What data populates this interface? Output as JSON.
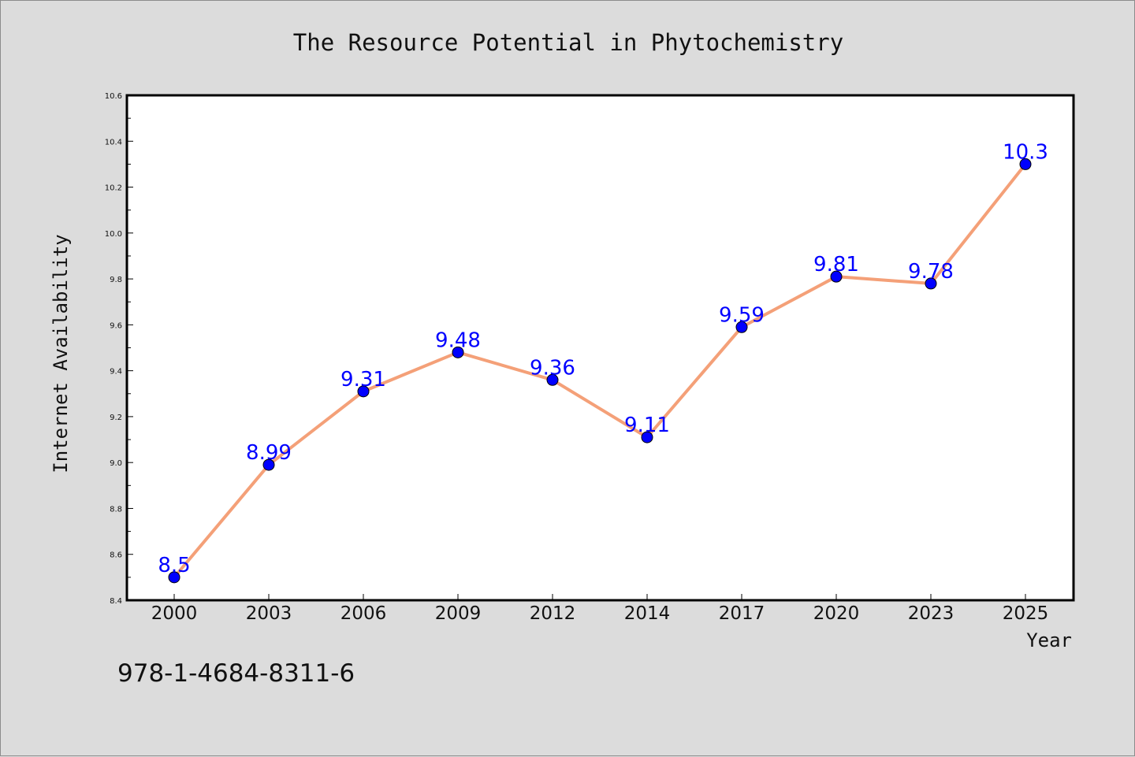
{
  "chart_data": {
    "type": "line",
    "title": "The Resource Potential in Phytochemistry",
    "xlabel": "Year",
    "ylabel": "Internet Availability",
    "categories": [
      "2000",
      "2003",
      "2006",
      "2009",
      "2012",
      "2014",
      "2017",
      "2020",
      "2023",
      "2025"
    ],
    "series": [
      {
        "values": [
          8.5,
          8.99,
          9.31,
          9.48,
          9.36,
          9.11,
          9.59,
          9.81,
          9.78,
          10.3
        ],
        "data_labels": [
          "8.5",
          "8.99",
          "9.31",
          "9.48",
          "9.36",
          "9.11",
          "9.59",
          "9.81",
          "9.78",
          "10.3"
        ]
      }
    ],
    "ylim": [
      8.4,
      10.6
    ],
    "yticks": [
      "8.4",
      "8.6",
      "8.8",
      "9.0",
      "9.2",
      "9.4",
      "9.6",
      "9.8",
      "10.0",
      "10.2",
      "10.4",
      "10.6"
    ],
    "grid": false,
    "line_color": "#f4a078",
    "marker_color": "#0000ff",
    "data_label_color": "#0000ff"
  },
  "footnote": "978-1-4684-8311-6"
}
